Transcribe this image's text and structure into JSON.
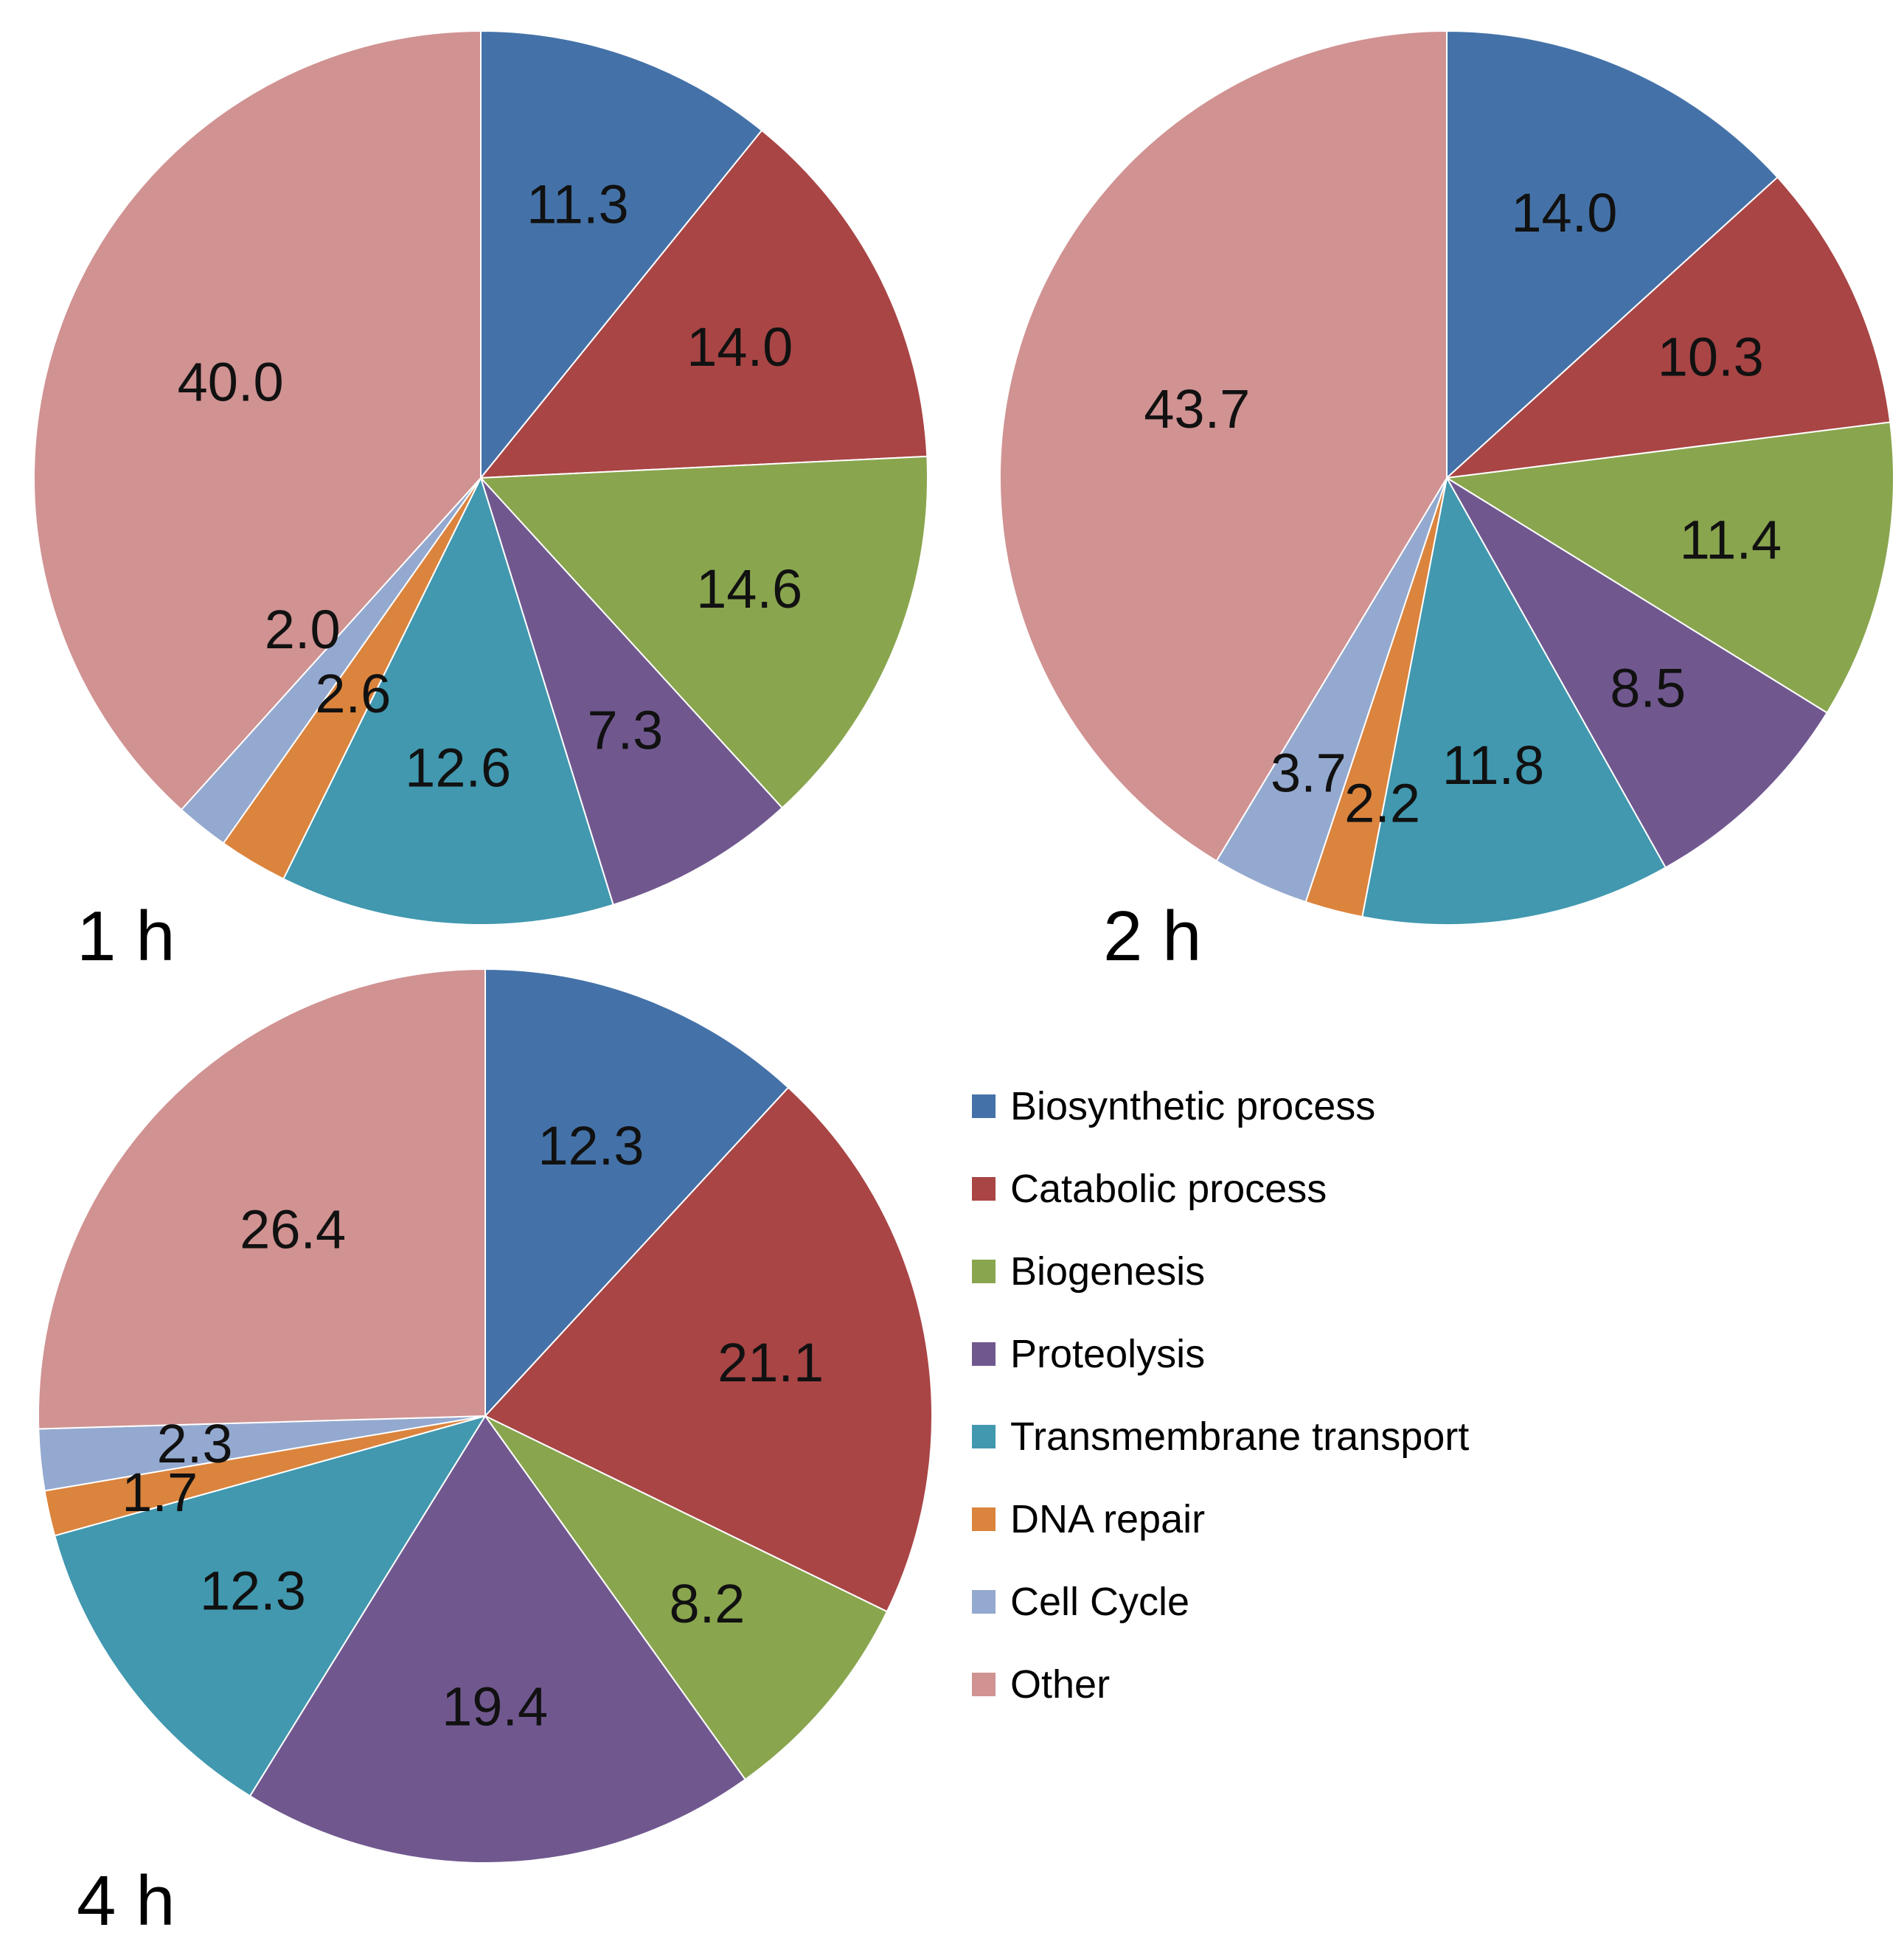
{
  "chart_data": {
    "type": "pie",
    "categories": [
      "Biosynthetic process",
      "Catabolic process",
      "Biogenesis",
      "Proteolysis",
      "Transmembrane transport",
      "DNA repair",
      "Cell Cycle",
      "Other"
    ],
    "colors": [
      "#4472A8",
      "#A94545",
      "#89A54E",
      "#70588F",
      "#4198AF",
      "#DB843D",
      "#94A9CF",
      "#D19292"
    ],
    "legend_position": "right",
    "charts": [
      {
        "label": "1 h",
        "values": [
          11.3,
          14.0,
          14.6,
          7.3,
          12.6,
          2.6,
          2.0,
          40.0
        ],
        "value_labels": [
          "11.3",
          "14.0",
          "14.6",
          "7.3",
          "12.6",
          "2.6",
          "2.0",
          "40.0"
        ]
      },
      {
        "label": "2 h",
        "values": [
          14.0,
          10.3,
          11.4,
          8.5,
          11.8,
          2.2,
          3.7,
          43.7
        ],
        "value_labels": [
          "14.0",
          "10.3",
          "11.4",
          "8.5",
          "11.8",
          "2.2",
          "3.7",
          "43.7"
        ]
      },
      {
        "label": "4 h",
        "values": [
          12.3,
          21.1,
          8.2,
          19.4,
          12.3,
          1.7,
          2.3,
          26.4
        ],
        "value_labels": [
          "12.3",
          "21.1",
          "8.2",
          "19.4",
          "12.3",
          "1.7",
          "2.3",
          "26.4"
        ]
      }
    ]
  }
}
